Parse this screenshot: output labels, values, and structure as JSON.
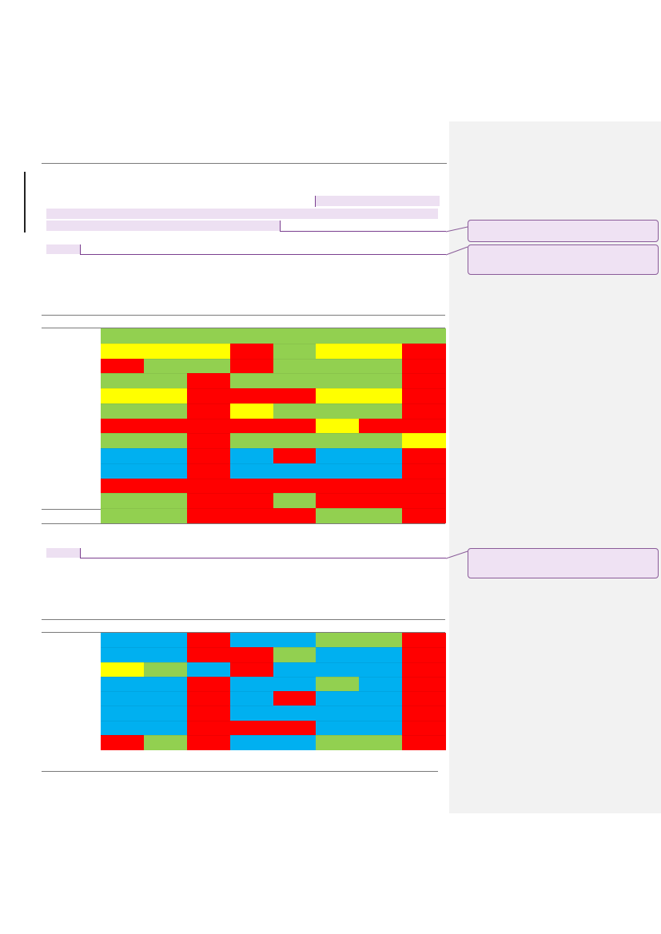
{
  "colors": {
    "green": "#92d050",
    "yellow": "#ffff00",
    "red": "#ff0000",
    "blue": "#00b0f0",
    "comment_fill": "#efe2f3",
    "comment_border": "#8a5c99",
    "margin_pane": "#f2f2f2"
  },
  "comments": [
    {
      "text": ""
    },
    {
      "text": ""
    },
    {
      "text": ""
    }
  ],
  "table1": {
    "columns": 8,
    "rows": [
      [
        "green",
        "green",
        "green",
        "green",
        "green",
        "green",
        "green",
        "green"
      ],
      [
        "yellow",
        "yellow",
        "yellow",
        "red",
        "green",
        "yellow",
        "yellow",
        "red"
      ],
      [
        "red",
        "green",
        "green",
        "red",
        "green",
        "green",
        "green",
        "red"
      ],
      [
        "green",
        "green",
        "red",
        "green",
        "green",
        "green",
        "green",
        "red"
      ],
      [
        "yellow",
        "yellow",
        "red",
        "red",
        "red",
        "yellow",
        "yellow",
        "red"
      ],
      [
        "green",
        "green",
        "red",
        "yellow",
        "green",
        "green",
        "green",
        "red"
      ],
      [
        "red",
        "red",
        "red",
        "red",
        "red",
        "yellow",
        "red",
        "red"
      ],
      [
        "green",
        "green",
        "red",
        "green",
        "green",
        "green",
        "green",
        "yellow"
      ],
      [
        "blue",
        "blue",
        "red",
        "blue",
        "red",
        "blue",
        "blue",
        "red"
      ],
      [
        "blue",
        "blue",
        "red",
        "blue",
        "blue",
        "blue",
        "blue",
        "red"
      ],
      [
        "red",
        "red",
        "red",
        "red",
        "red",
        "red",
        "red",
        "red"
      ],
      [
        "green",
        "green",
        "red",
        "red",
        "green",
        "red",
        "red",
        "red"
      ],
      [
        "green",
        "green",
        "red",
        "red",
        "red",
        "green",
        "green",
        "red"
      ]
    ]
  },
  "table2": {
    "columns": 8,
    "rows": [
      [
        "blue",
        "blue",
        "red",
        "blue",
        "blue",
        "green",
        "green",
        "red"
      ],
      [
        "blue",
        "blue",
        "red",
        "red",
        "green",
        "blue",
        "blue",
        "red"
      ],
      [
        "yellow",
        "green",
        "blue",
        "red",
        "blue",
        "blue",
        "blue",
        "red"
      ],
      [
        "blue",
        "blue",
        "red",
        "blue",
        "blue",
        "green",
        "blue",
        "red"
      ],
      [
        "blue",
        "blue",
        "red",
        "blue",
        "red",
        "blue",
        "blue",
        "red"
      ],
      [
        "blue",
        "blue",
        "red",
        "blue",
        "blue",
        "blue",
        "blue",
        "red"
      ],
      [
        "blue",
        "blue",
        "red",
        "red",
        "red",
        "blue",
        "blue",
        "red"
      ],
      [
        "red",
        "green",
        "red",
        "blue",
        "blue",
        "green",
        "green",
        "red"
      ]
    ]
  }
}
